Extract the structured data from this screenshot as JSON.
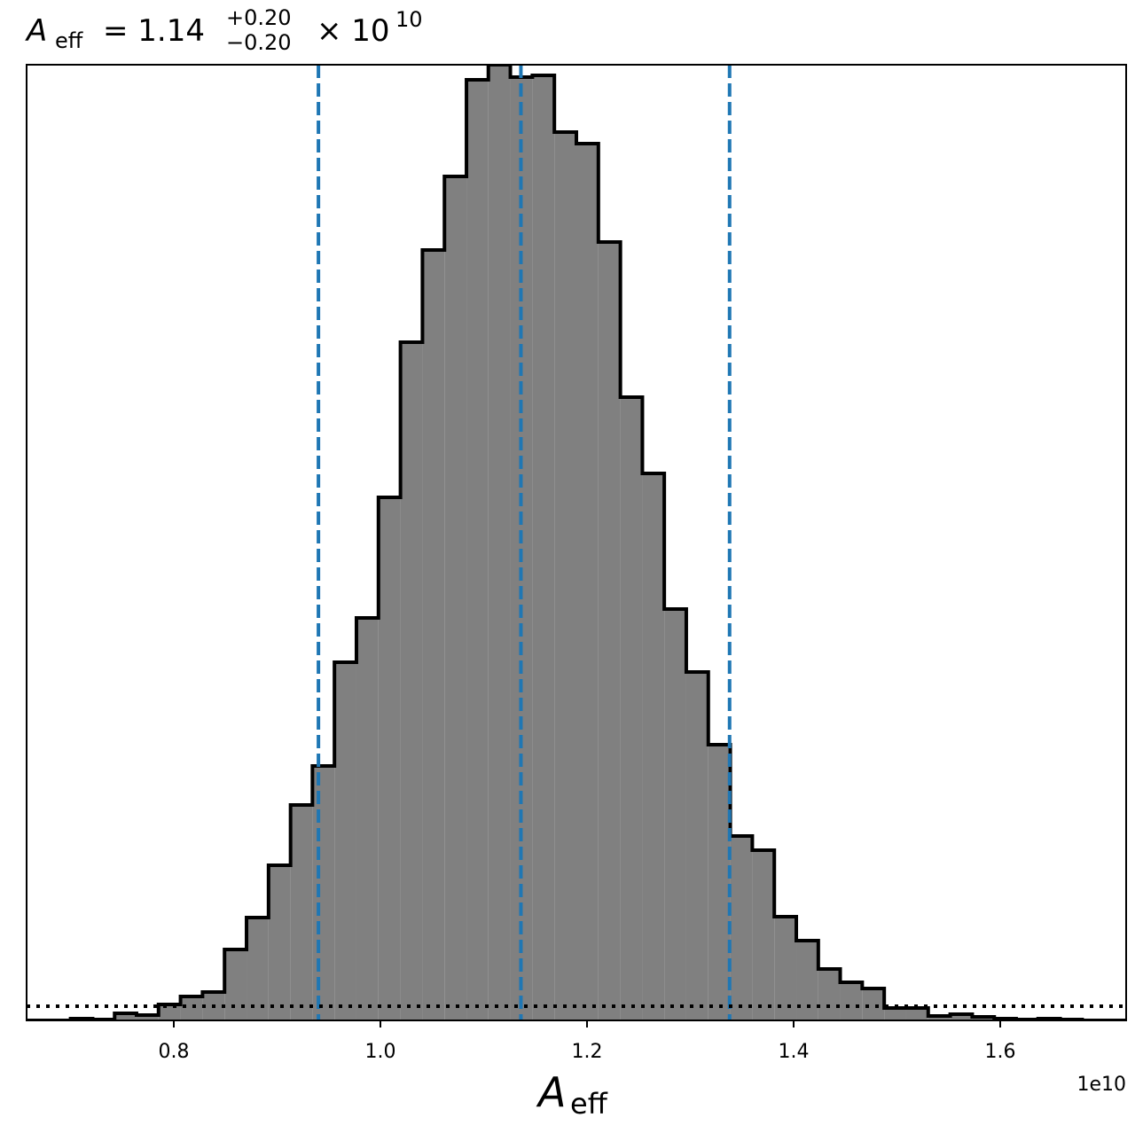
{
  "chart_data": {
    "type": "histogram",
    "title": {
      "symbol": "A",
      "symbol_subscript": "eff",
      "text": "= 1.14",
      "upper_error": "+0.20",
      "lower_error": "−0.20",
      "multiplier": "× 10",
      "exponent": "10"
    },
    "x_label": {
      "symbol": "A",
      "subscript": "eff"
    },
    "x_offset_label": "1e10",
    "bins": [
      0.6575,
      0.6788,
      0.7001,
      0.7214,
      0.7427,
      0.7639,
      0.7852,
      0.8065,
      0.8278,
      0.8491,
      0.8704,
      0.8917,
      0.913,
      0.9342,
      0.9555,
      0.9768,
      0.9981,
      1.0194,
      1.0407,
      1.062,
      1.0833,
      1.1045,
      1.1258,
      1.1471,
      1.1684,
      1.1897,
      1.211,
      1.2323,
      1.2536,
      1.2748,
      1.2961,
      1.3174,
      1.3387,
      1.36,
      1.3813,
      1.4026,
      1.4239,
      1.4451,
      1.4664,
      1.4877,
      1.509,
      1.5303,
      1.5516,
      1.5729,
      1.5942,
      1.6154,
      1.6367,
      1.658,
      1.6793,
      1.7006,
      1.7219
    ],
    "counts": [
      0,
      0,
      2,
      1,
      8,
      6,
      18,
      27,
      32,
      80,
      116,
      175,
      243,
      287,
      404,
      454,
      590,
      765,
      869,
      952,
      1061,
      1078,
      1064,
      1066,
      1002,
      989,
      878,
      703,
      617,
      464,
      393,
      311,
      208,
      192,
      117,
      90,
      58,
      43,
      36,
      14,
      14,
      5,
      7,
      4,
      2,
      1,
      2,
      1,
      0,
      0
    ],
    "color": "#808080",
    "edge_color": "#000000",
    "xlim": [
      0.6575,
      1.7219
    ],
    "xticks": [
      0.8,
      {
        "value": 1,
        "label": "1.0"
      },
      1.2,
      1.4,
      1.6
    ],
    "ylim": [
      0,
      1078
    ],
    "vlines": {
      "values": [
        0.94,
        1.136,
        1.338
      ],
      "color": "#1f77b4"
    },
    "hline": {
      "value": 16,
      "color": "#000000"
    }
  }
}
